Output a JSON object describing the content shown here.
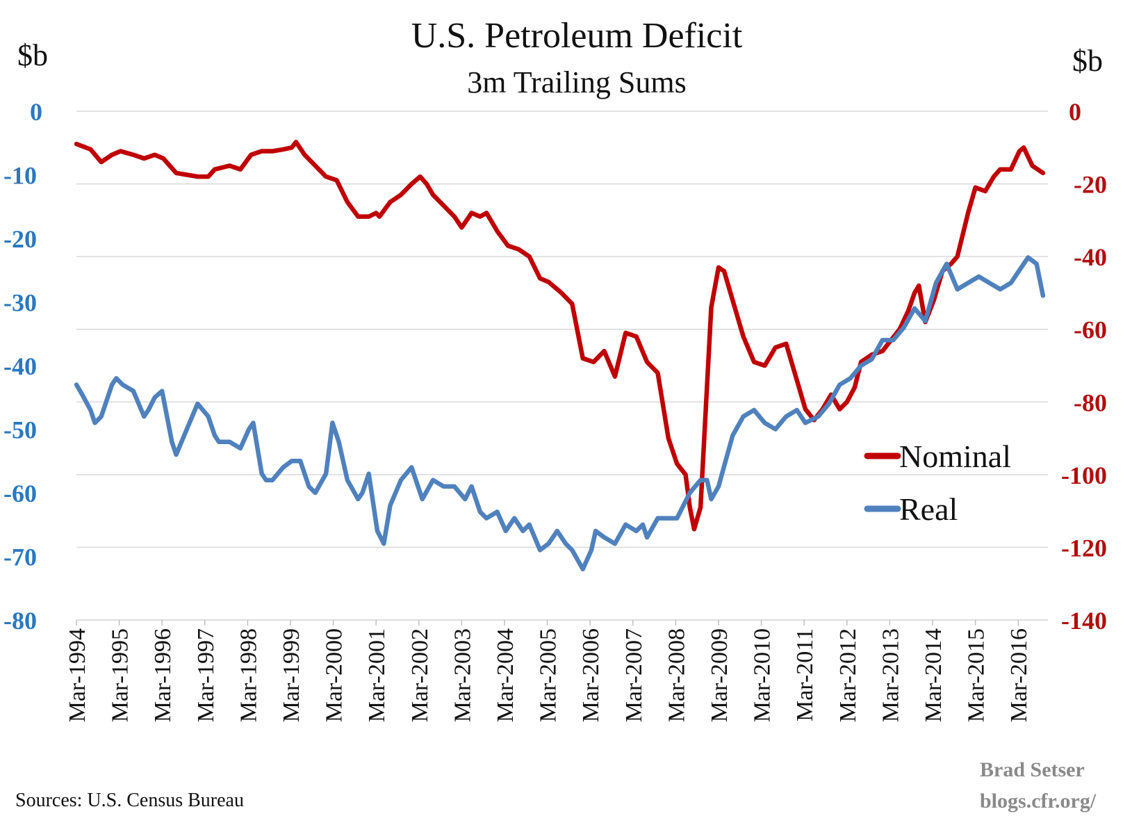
{
  "chart_data": {
    "type": "line",
    "title": "U.S. Petroleum Deficit",
    "subtitle": "3m Trailing Sums",
    "y_left_label": "$b",
    "y_right_label": "$b",
    "y_left_range": [
      -80,
      0
    ],
    "y_left_ticks": [
      "0",
      "-10",
      "-20",
      "-30",
      "-40",
      "-50",
      "-60",
      "-70",
      "-80"
    ],
    "y_right_range": [
      -140,
      0
    ],
    "y_right_ticks": [
      "0",
      "-20",
      "-40",
      "-60",
      "-80",
      "-100",
      "-120",
      "-140"
    ],
    "x_ticks": [
      "Mar-1994",
      "Mar-1995",
      "Mar-1996",
      "Mar-1997",
      "Mar-1998",
      "Mar-1999",
      "Mar-2000",
      "Mar-2001",
      "Mar-2002",
      "Mar-2003",
      "Mar-2004",
      "Mar-2005",
      "Mar-2006",
      "Mar-2007",
      "Mar-2008",
      "Mar-2009",
      "Mar-2010",
      "Mar-2011",
      "Mar-2012",
      "Mar-2013",
      "Mar-2014",
      "Mar-2015",
      "Mar-2016"
    ],
    "grid": true,
    "legend_position": "right",
    "colors": {
      "nominal": "#c00000",
      "real": "#4f81bd",
      "left_axis": "#2a78c0",
      "right_axis": "#b30d0d"
    },
    "series": [
      {
        "name": "Nominal",
        "axis": "right",
        "points": [
          [
            1994.17,
            -9
          ],
          [
            1994.5,
            -10.5
          ],
          [
            1994.75,
            -14
          ],
          [
            1995.0,
            -12
          ],
          [
            1995.2,
            -11
          ],
          [
            1995.5,
            -12
          ],
          [
            1995.75,
            -13
          ],
          [
            1996.0,
            -12
          ],
          [
            1996.2,
            -13
          ],
          [
            1996.35,
            -15
          ],
          [
            1996.5,
            -17
          ],
          [
            1996.75,
            -17.5
          ],
          [
            1997.0,
            -18
          ],
          [
            1997.25,
            -18
          ],
          [
            1997.4,
            -16
          ],
          [
            1997.75,
            -15
          ],
          [
            1998.0,
            -16
          ],
          [
            1998.25,
            -12
          ],
          [
            1998.5,
            -11
          ],
          [
            1998.75,
            -11
          ],
          [
            1999.0,
            -10.5
          ],
          [
            1999.2,
            -10
          ],
          [
            1999.3,
            -8.5
          ],
          [
            1999.5,
            -12
          ],
          [
            1999.75,
            -15
          ],
          [
            2000.0,
            -18
          ],
          [
            2000.25,
            -19
          ],
          [
            2000.5,
            -25
          ],
          [
            2000.75,
            -29
          ],
          [
            2001.0,
            -29
          ],
          [
            2001.17,
            -28
          ],
          [
            2001.25,
            -29
          ],
          [
            2001.5,
            -25
          ],
          [
            2001.75,
            -23
          ],
          [
            2002.0,
            -20
          ],
          [
            2002.2,
            -18
          ],
          [
            2002.35,
            -20
          ],
          [
            2002.5,
            -23
          ],
          [
            2002.75,
            -26
          ],
          [
            2003.0,
            -29
          ],
          [
            2003.17,
            -32
          ],
          [
            2003.4,
            -28
          ],
          [
            2003.6,
            -29
          ],
          [
            2003.75,
            -28
          ],
          [
            2004.0,
            -33
          ],
          [
            2004.25,
            -37
          ],
          [
            2004.5,
            -38
          ],
          [
            2004.75,
            -40
          ],
          [
            2005.0,
            -46
          ],
          [
            2005.2,
            -47
          ],
          [
            2005.5,
            -50
          ],
          [
            2005.75,
            -53
          ],
          [
            2006.0,
            -68
          ],
          [
            2006.25,
            -69
          ],
          [
            2006.5,
            -66
          ],
          [
            2006.75,
            -73
          ],
          [
            2007.0,
            -61
          ],
          [
            2007.25,
            -62
          ],
          [
            2007.5,
            -69
          ],
          [
            2007.75,
            -72
          ],
          [
            2008.0,
            -90
          ],
          [
            2008.2,
            -97
          ],
          [
            2008.4,
            -100
          ],
          [
            2008.5,
            -109
          ],
          [
            2008.6,
            -115
          ],
          [
            2008.75,
            -109
          ],
          [
            2009.0,
            -54
          ],
          [
            2009.17,
            -43
          ],
          [
            2009.3,
            -44
          ],
          [
            2009.5,
            -52
          ],
          [
            2009.75,
            -62
          ],
          [
            2010.0,
            -69
          ],
          [
            2010.25,
            -70
          ],
          [
            2010.5,
            -65
          ],
          [
            2010.75,
            -64
          ],
          [
            2011.0,
            -74
          ],
          [
            2011.2,
            -82
          ],
          [
            2011.4,
            -85
          ],
          [
            2011.6,
            -82
          ],
          [
            2011.8,
            -78
          ],
          [
            2012.0,
            -82
          ],
          [
            2012.17,
            -80
          ],
          [
            2012.35,
            -76
          ],
          [
            2012.5,
            -69
          ],
          [
            2012.75,
            -67
          ],
          [
            2013.0,
            -66
          ],
          [
            2013.2,
            -63
          ],
          [
            2013.4,
            -60
          ],
          [
            2013.6,
            -55
          ],
          [
            2013.75,
            -50
          ],
          [
            2013.85,
            -48
          ],
          [
            2014.0,
            -58
          ],
          [
            2014.2,
            -52
          ],
          [
            2014.4,
            -44
          ],
          [
            2014.6,
            -42
          ],
          [
            2014.75,
            -40
          ],
          [
            2015.0,
            -28
          ],
          [
            2015.17,
            -21
          ],
          [
            2015.4,
            -22
          ],
          [
            2015.6,
            -18
          ],
          [
            2015.75,
            -16
          ],
          [
            2016.0,
            -16
          ],
          [
            2016.2,
            -11
          ],
          [
            2016.3,
            -10
          ],
          [
            2016.5,
            -15
          ],
          [
            2016.75,
            -17
          ]
        ]
      },
      {
        "name": "Real",
        "axis": "left",
        "points": [
          [
            1994.17,
            -43
          ],
          [
            1994.3,
            -44.5
          ],
          [
            1994.5,
            -47
          ],
          [
            1994.6,
            -49
          ],
          [
            1994.75,
            -48
          ],
          [
            1995.0,
            -43
          ],
          [
            1995.1,
            -42
          ],
          [
            1995.25,
            -43
          ],
          [
            1995.5,
            -44
          ],
          [
            1995.75,
            -48
          ],
          [
            1995.85,
            -47
          ],
          [
            1996.0,
            -45
          ],
          [
            1996.17,
            -44
          ],
          [
            1996.4,
            -52
          ],
          [
            1996.5,
            -54
          ],
          [
            1996.75,
            -50
          ],
          [
            1997.0,
            -46
          ],
          [
            1997.25,
            -48
          ],
          [
            1997.4,
            -51
          ],
          [
            1997.5,
            -52
          ],
          [
            1997.75,
            -52
          ],
          [
            1998.0,
            -53
          ],
          [
            1998.2,
            -50
          ],
          [
            1998.3,
            -49
          ],
          [
            1998.5,
            -57
          ],
          [
            1998.6,
            -58
          ],
          [
            1998.75,
            -58
          ],
          [
            1999.0,
            -56
          ],
          [
            1999.2,
            -55
          ],
          [
            1999.4,
            -55
          ],
          [
            1999.6,
            -59
          ],
          [
            1999.75,
            -60
          ],
          [
            2000.0,
            -57
          ],
          [
            2000.15,
            -49
          ],
          [
            2000.3,
            -52
          ],
          [
            2000.5,
            -58
          ],
          [
            2000.75,
            -61
          ],
          [
            2000.85,
            -60
          ],
          [
            2001.0,
            -57
          ],
          [
            2001.2,
            -66
          ],
          [
            2001.35,
            -68
          ],
          [
            2001.5,
            -62
          ],
          [
            2001.75,
            -58
          ],
          [
            2002.0,
            -56
          ],
          [
            2002.25,
            -61
          ],
          [
            2002.5,
            -58
          ],
          [
            2002.75,
            -59
          ],
          [
            2003.0,
            -59
          ],
          [
            2003.25,
            -61
          ],
          [
            2003.4,
            -59
          ],
          [
            2003.6,
            -63
          ],
          [
            2003.75,
            -64
          ],
          [
            2004.0,
            -63
          ],
          [
            2004.2,
            -66
          ],
          [
            2004.4,
            -64
          ],
          [
            2004.6,
            -66
          ],
          [
            2004.75,
            -65
          ],
          [
            2005.0,
            -69
          ],
          [
            2005.2,
            -68
          ],
          [
            2005.4,
            -66
          ],
          [
            2005.6,
            -68
          ],
          [
            2005.75,
            -69
          ],
          [
            2006.0,
            -72
          ],
          [
            2006.2,
            -69
          ],
          [
            2006.3,
            -66
          ],
          [
            2006.5,
            -67
          ],
          [
            2006.75,
            -68
          ],
          [
            2007.0,
            -65
          ],
          [
            2007.25,
            -66
          ],
          [
            2007.4,
            -65
          ],
          [
            2007.5,
            -67
          ],
          [
            2007.75,
            -64
          ],
          [
            2008.0,
            -64
          ],
          [
            2008.2,
            -64
          ],
          [
            2008.5,
            -60
          ],
          [
            2008.75,
            -58
          ],
          [
            2008.9,
            -58
          ],
          [
            2009.0,
            -61
          ],
          [
            2009.17,
            -59
          ],
          [
            2009.5,
            -51
          ],
          [
            2009.75,
            -48
          ],
          [
            2010.0,
            -47
          ],
          [
            2010.25,
            -49
          ],
          [
            2010.5,
            -50
          ],
          [
            2010.75,
            -48
          ],
          [
            2011.0,
            -47
          ],
          [
            2011.2,
            -49
          ],
          [
            2011.5,
            -48
          ],
          [
            2011.75,
            -46
          ],
          [
            2012.0,
            -43
          ],
          [
            2012.25,
            -42
          ],
          [
            2012.5,
            -40
          ],
          [
            2012.75,
            -39
          ],
          [
            2013.0,
            -36
          ],
          [
            2013.25,
            -36
          ],
          [
            2013.5,
            -34
          ],
          [
            2013.75,
            -31
          ],
          [
            2014.0,
            -33
          ],
          [
            2014.25,
            -27
          ],
          [
            2014.5,
            -24
          ],
          [
            2014.75,
            -28
          ],
          [
            2015.0,
            -27
          ],
          [
            2015.25,
            -26
          ],
          [
            2015.5,
            -27
          ],
          [
            2015.75,
            -28
          ],
          [
            2016.0,
            -27
          ],
          [
            2016.2,
            -25
          ],
          [
            2016.4,
            -23
          ],
          [
            2016.6,
            -24
          ],
          [
            2016.75,
            -29
          ]
        ]
      }
    ],
    "source": "Sources: U.S. Census Bureau",
    "credit_line1": "Brad Setser",
    "credit_line2": "blogs.cfr.org/"
  }
}
